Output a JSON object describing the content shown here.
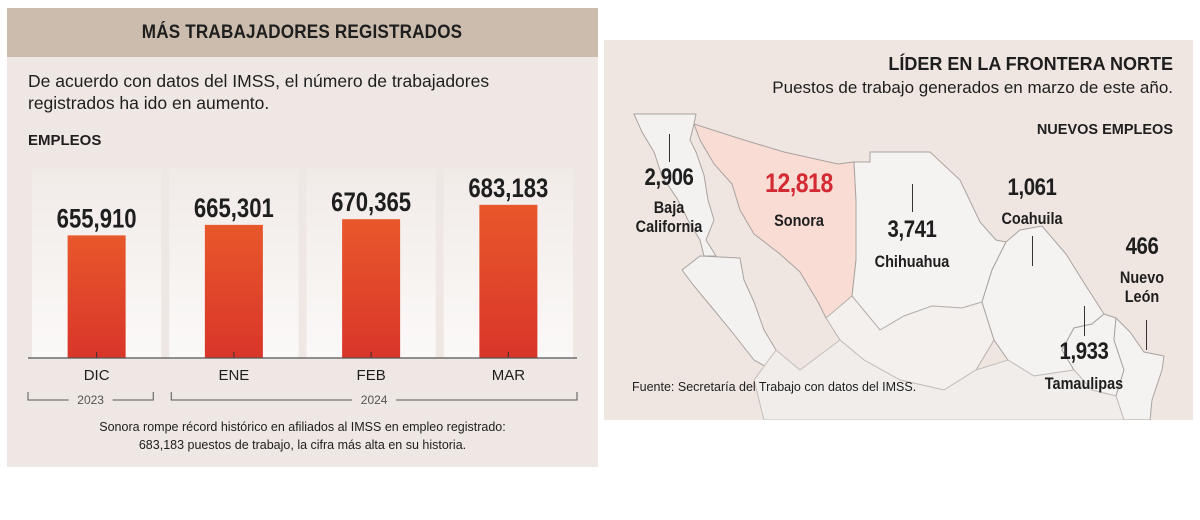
{
  "left_panel": {
    "title": "MÁS TRABAJADORES REGISTRADOS",
    "intro_line1": "De acuerdo con datos del IMSS, el número de trabajadores",
    "intro_line2": "registrados ha ido en aumento.",
    "section_label": "EMPLEOS",
    "footnote_line1": "Sonora rompe récord histórico en afiliados al IMSS en empleo registrado:",
    "footnote_line2": "683,183 puestos de trabajo, la cifra más alta en su historia."
  },
  "chart_data": {
    "type": "bar",
    "title": "MÁS TRABAJADORES REGISTRADOS",
    "ylabel": "EMPLEOS",
    "xlabel": "",
    "categories": [
      "DIC",
      "ENE",
      "FEB",
      "MAR"
    ],
    "values": [
      655910,
      665301,
      670365,
      683183
    ],
    "value_labels": [
      "655,910",
      "665,301",
      "670,365",
      "683,183"
    ],
    "year_groups": [
      {
        "label": "2023",
        "categories": [
          "DIC"
        ]
      },
      {
        "label": "2024",
        "categories": [
          "ENE",
          "FEB",
          "MAR"
        ]
      }
    ],
    "ylim": [
      0,
      700000
    ],
    "bar_color": "#e2452a",
    "grid": false
  },
  "right_panel": {
    "title": "LÍDER EN LA FRONTERA NORTE",
    "subtitle": "Puestos de trabajo generados en marzo de este año.",
    "section_label": "NUEVOS EMPLEOS",
    "source": "Fuente: Secretaría del Trabajo con datos del IMSS.",
    "highlight_color": "#d42a33",
    "states": [
      {
        "name_line1": "Baja",
        "name_line2": "California",
        "value": "2,906"
      },
      {
        "name_line1": "Sonora",
        "name_line2": "",
        "value": "12,818"
      },
      {
        "name_line1": "Chihuahua",
        "name_line2": "",
        "value": "3,741"
      },
      {
        "name_line1": "Coahuila",
        "name_line2": "",
        "value": "1,061"
      },
      {
        "name_line1": "Nuevo",
        "name_line2": "León",
        "value": "466"
      },
      {
        "name_line1": "Tamaulipas",
        "name_line2": "",
        "value": "1,933"
      }
    ]
  }
}
